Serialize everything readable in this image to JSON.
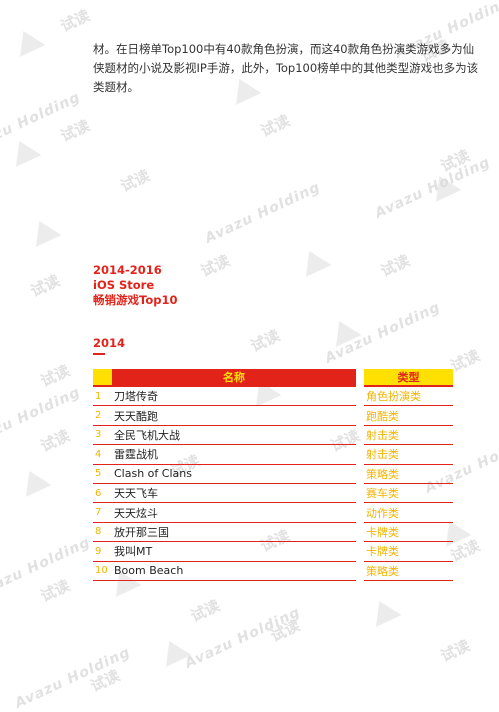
{
  "intro_text": "材。在日榜单Top100中有40款角色扮演，而这40款角色扮演类游戏多为仙侠题材的小说及影视IP手游，此外，Top100榜单中的其他类型游戏也多为该类题材。",
  "heading": {
    "line1": "2014-2016",
    "line2": "iOS Store",
    "line3": "畅销游戏Top10"
  },
  "year": "2014",
  "table": {
    "header_name": "名称",
    "header_type": "类型",
    "rows": [
      {
        "rank": "1",
        "name": "刀塔传奇",
        "type": "角色扮演类"
      },
      {
        "rank": "2",
        "name": "天天酷跑",
        "type": "跑酷类"
      },
      {
        "rank": "3",
        "name": "全民飞机大战",
        "type": "射击类"
      },
      {
        "rank": "4",
        "name": "雷霆战机",
        "type": "射击类"
      },
      {
        "rank": "5",
        "name": "Clash of Clans",
        "type": "策略类"
      },
      {
        "rank": "6",
        "name": "天天飞车",
        "type": "赛车类"
      },
      {
        "rank": "7",
        "name": "天天炫斗",
        "type": "动作类"
      },
      {
        "rank": "8",
        "name": "放开那三国",
        "type": "卡牌类"
      },
      {
        "rank": "9",
        "name": "我叫MT",
        "type": "卡牌类"
      },
      {
        "rank": "10",
        "name": "Boom Beach",
        "type": "策略类"
      }
    ]
  },
  "watermark": {
    "cn_text": "试读",
    "brand_text": "Avazu Holding"
  },
  "colors": {
    "accent_red": "#e2231a",
    "accent_yellow": "#ffe000",
    "type_text": "#f3b400"
  }
}
